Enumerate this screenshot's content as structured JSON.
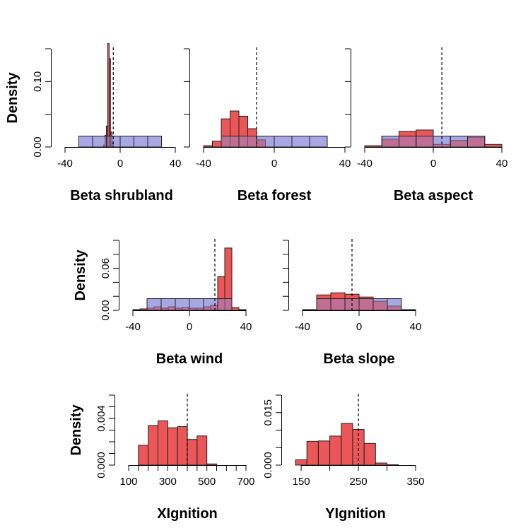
{
  "colors": {
    "prior_fill": "#9a9ae0",
    "prior_opacity": 0.75,
    "posterior_fill": "#e8393b",
    "posterior_opacity": 0.85,
    "stroke": "#222222"
  },
  "chart_data": [
    {
      "type": "histogram",
      "xlabel": "Beta shrubland",
      "ylabel": "Density",
      "xlim": [
        -40,
        40
      ],
      "ylim": [
        0,
        0.15
      ],
      "xticks": [
        -40,
        0,
        40
      ],
      "yticks": [
        0.0,
        0.05,
        0.1,
        0.15
      ],
      "ytick_labels": [
        "0.00",
        "",
        "0.10",
        ""
      ],
      "true_value": -5,
      "prior_bins": {
        "edges": [
          -30,
          -20,
          -10,
          0,
          10,
          20,
          30
        ],
        "density": [
          0.0167,
          0.0167,
          0.0167,
          0.0167,
          0.0167,
          0.0167
        ]
      },
      "posterior_bins": {
        "edges": [
          -12,
          -11,
          -10,
          -9,
          -8,
          -7,
          -6,
          -5
        ],
        "density": [
          0.003,
          0.018,
          0.032,
          0.158,
          0.135,
          0.023,
          0.006
        ]
      }
    },
    {
      "type": "histogram",
      "xlabel": "Beta forest",
      "ylabel": "",
      "xlim": [
        -40,
        40
      ],
      "ylim": [
        0,
        0.15
      ],
      "xticks": [
        -40,
        0,
        40
      ],
      "yticks": [
        0.0,
        0.05,
        0.1,
        0.15
      ],
      "ytick_labels": [
        "",
        "",
        "",
        ""
      ],
      "true_value": -10,
      "prior_bins": {
        "edges": [
          -30,
          -20,
          -10,
          0,
          10,
          20,
          30
        ],
        "density": [
          0.0167,
          0.0167,
          0.0167,
          0.0167,
          0.0167,
          0.0167
        ]
      },
      "posterior_bins": {
        "edges": [
          -40,
          -35,
          -30,
          -25,
          -20,
          -15,
          -10,
          -5
        ],
        "density": [
          0.002,
          0.009,
          0.043,
          0.055,
          0.047,
          0.028,
          0.011
        ]
      }
    },
    {
      "type": "histogram",
      "xlabel": "Beta aspect",
      "ylabel": "",
      "xlim": [
        -40,
        40
      ],
      "ylim": [
        0,
        0.15
      ],
      "xticks": [
        -40,
        0,
        40
      ],
      "yticks": [
        0.0,
        0.05,
        0.1,
        0.15
      ],
      "ytick_labels": [
        "",
        "",
        "",
        ""
      ],
      "true_value": 5,
      "prior_bins": {
        "edges": [
          -30,
          -20,
          -10,
          0,
          10,
          20,
          30
        ],
        "density": [
          0.0167,
          0.0167,
          0.0167,
          0.0167,
          0.0167,
          0.0167
        ]
      },
      "posterior_bins": {
        "edges": [
          -40,
          -30,
          -20,
          -10,
          0,
          10,
          20,
          30,
          40
        ],
        "density": [
          0.002,
          0.012,
          0.024,
          0.026,
          0.004,
          0.01,
          0.015,
          0.004
        ]
      }
    },
    {
      "type": "histogram",
      "xlabel": "Beta wind",
      "ylabel": "Density",
      "xlim": [
        -40,
        40
      ],
      "ylim": [
        0,
        0.1
      ],
      "xticks": [
        -40,
        0,
        40
      ],
      "yticks": [
        0.0,
        0.02,
        0.04,
        0.06,
        0.08,
        0.1
      ],
      "ytick_labels": [
        "0.00",
        "",
        "",
        "0.06",
        "",
        ""
      ],
      "true_value": 18,
      "prior_bins": {
        "edges": [
          -30,
          -20,
          -10,
          0,
          10,
          20,
          30
        ],
        "density": [
          0.0167,
          0.0167,
          0.0167,
          0.0167,
          0.0167,
          0.0167
        ]
      },
      "posterior_bins": {
        "edges": [
          -40,
          -35,
          -30,
          -25,
          -20,
          -15,
          -10,
          -5,
          0,
          5,
          10,
          15,
          20,
          25,
          30,
          35,
          40
        ],
        "density": [
          0.001,
          0.002,
          0.003,
          0.005,
          0.003,
          0.005,
          0.003,
          0.004,
          0.003,
          0.003,
          0.005,
          0.007,
          0.048,
          0.089,
          0.004,
          0.001
        ]
      }
    },
    {
      "type": "histogram",
      "xlabel": "Beta slope",
      "ylabel": "",
      "xlim": [
        -40,
        40
      ],
      "ylim": [
        0,
        0.1
      ],
      "xticks": [
        -40,
        0,
        40
      ],
      "yticks": [
        0.0,
        0.02,
        0.04,
        0.06,
        0.08,
        0.1
      ],
      "ytick_labels": [
        "",
        "",
        "",
        "",
        "",
        ""
      ],
      "true_value": -5,
      "prior_bins": {
        "edges": [
          -30,
          -20,
          -10,
          0,
          10,
          20,
          30
        ],
        "density": [
          0.0167,
          0.0167,
          0.0167,
          0.0167,
          0.0167,
          0.0167
        ]
      },
      "posterior_bins": {
        "edges": [
          -40,
          -30,
          -20,
          -10,
          0,
          10,
          20,
          30,
          40
        ],
        "density": [
          0.001,
          0.022,
          0.025,
          0.023,
          0.019,
          0.013,
          0.006,
          0.001
        ]
      }
    },
    {
      "type": "histogram",
      "xlabel": "XIgnition",
      "ylabel": "Density",
      "xlim": [
        100,
        700
      ],
      "ylim": [
        0,
        0.006
      ],
      "xticks": [
        100,
        150,
        200,
        250,
        300,
        350,
        400,
        450,
        500,
        550,
        600,
        650,
        700
      ],
      "xtick_labels": [
        "100",
        "",
        "",
        "",
        "300",
        "",
        "",
        "",
        "500",
        "",
        "",
        "",
        "700"
      ],
      "yticks": [
        0.0,
        0.001,
        0.002,
        0.003,
        0.004,
        0.005,
        0.006
      ],
      "ytick_labels": [
        "0.000",
        "",
        "",
        "",
        "0.004",
        "",
        ""
      ],
      "true_value": 400,
      "prior_bins": null,
      "posterior_bins": {
        "edges": [
          150,
          200,
          250,
          300,
          350,
          400,
          450,
          500,
          550
        ],
        "density": [
          0.0017,
          0.0034,
          0.0038,
          0.0032,
          0.0033,
          0.0022,
          0.0025,
          0.0001
        ]
      }
    },
    {
      "type": "histogram",
      "xlabel": "YIgnition",
      "ylabel": "",
      "xlim": [
        140,
        350
      ],
      "ylim": [
        0,
        0.02
      ],
      "xticks": [
        150,
        200,
        250,
        300,
        350
      ],
      "xtick_labels": [
        "150",
        "",
        "250",
        "",
        "350"
      ],
      "yticks": [
        0.0,
        0.005,
        0.01,
        0.015,
        0.02
      ],
      "ytick_labels": [
        "0.000",
        "",
        "",
        "0.015",
        ""
      ],
      "true_value": 250,
      "prior_bins": null,
      "posterior_bins": {
        "edges": [
          140,
          160,
          180,
          200,
          220,
          240,
          260,
          280,
          300,
          320
        ],
        "density": [
          0.0015,
          0.0068,
          0.0069,
          0.0083,
          0.0119,
          0.0102,
          0.0062,
          0.0006,
          0.0001
        ]
      }
    }
  ]
}
